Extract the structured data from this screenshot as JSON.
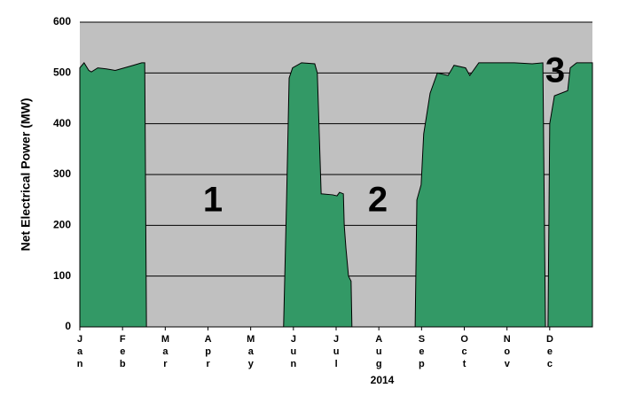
{
  "chart_data": {
    "type": "area",
    "x": [
      0,
      0.1,
      0.21,
      0.27,
      0.42,
      0.62,
      0.83,
      1.04,
      1.25,
      1.45,
      1.52,
      1.56,
      4.77,
      4.84,
      4.9,
      4.98,
      5.19,
      5.5,
      5.56,
      5.65,
      5.92,
      6.02,
      6.08,
      6.17,
      6.19,
      6.23,
      6.29,
      6.35,
      6.37,
      7.85,
      7.89,
      7.99,
      8.05,
      8.2,
      8.37,
      8.62,
      8.76,
      9.03,
      9.13,
      9.34,
      9.76,
      10.17,
      10.59,
      10.84,
      10.9,
      10.96,
      11.0,
      11.11,
      11.42,
      11.48,
      11.63,
      12.0
    ],
    "values": [
      510,
      520,
      505,
      502,
      510,
      508,
      505,
      510,
      515,
      520,
      520,
      0,
      0,
      250,
      490,
      510,
      520,
      518,
      500,
      262,
      260,
      258,
      265,
      262,
      200,
      155,
      100,
      90,
      0,
      0,
      250,
      280,
      380,
      460,
      500,
      495,
      515,
      510,
      495,
      520,
      520,
      520,
      518,
      520,
      0,
      0,
      400,
      455,
      465,
      510,
      520,
      520
    ],
    "color": "#339966",
    "background": "#c0c0c0",
    "xlim": [
      0,
      12
    ],
    "xticks": [
      {
        "value": 0,
        "label": "Jan"
      },
      {
        "value": 1,
        "label": "Feb"
      },
      {
        "value": 2,
        "label": "Mar"
      },
      {
        "value": 3,
        "label": "Apr"
      },
      {
        "value": 4,
        "label": "May"
      },
      {
        "value": 5,
        "label": "Jun"
      },
      {
        "value": 6,
        "label": "Jul"
      },
      {
        "value": 7,
        "label": "Aug"
      },
      {
        "value": 8,
        "label": "Sep"
      },
      {
        "value": 9,
        "label": "Oct"
      },
      {
        "value": 10,
        "label": "Nov"
      },
      {
        "value": 11,
        "label": "Dec"
      }
    ],
    "ylim": [
      0,
      600
    ],
    "yticks": [
      0,
      100,
      200,
      300,
      400,
      500,
      600
    ],
    "grid": true,
    "xlabel": "2014",
    "ylabel": "Net Electrical Power (MW)",
    "annotations": [
      "1",
      "2",
      "3"
    ]
  }
}
